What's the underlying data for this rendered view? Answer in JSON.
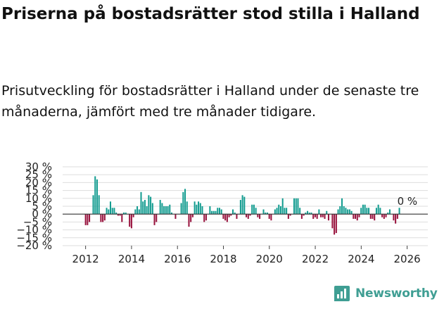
{
  "title": "Priserna på bostadsrätter stod stilla i Halland",
  "subtitle": "Prisutveckling för bostadsrätter i Halland under de senaste tre månaderna, jämfört med tre månader tidigare.",
  "brand": {
    "name": "Newsworthy",
    "color": "#3f9e93",
    "icon": "bar-chart-icon"
  },
  "colors": {
    "positive": "#139c90",
    "negative": "#98123d",
    "grid": "#dddddd",
    "zero": "#333333"
  },
  "chart_data": {
    "type": "bar",
    "title": "Priserna på bostadsrätter stod stilla i Halland",
    "xlabel": "",
    "ylabel": "",
    "ylim": [
      -20,
      30
    ],
    "xlim": [
      2011.0,
      2026.9
    ],
    "grid": true,
    "y_ticks": [
      -20,
      -15,
      -10,
      -5,
      0,
      5,
      10,
      15,
      20,
      25,
      30
    ],
    "y_tick_labels": [
      "−20 %",
      "−15 %",
      "−10 %",
      "−5 %",
      "0 %",
      "5 %",
      "10 %",
      "15 %",
      "20 %",
      "25 %",
      "30 %"
    ],
    "x_ticks": [
      2012,
      2014,
      2016,
      2018,
      2020,
      2022,
      2024,
      2026
    ],
    "x_tick_labels": [
      "2012",
      "2014",
      "2016",
      "2018",
      "2020",
      "2022",
      "2024",
      "2026"
    ],
    "annotation": {
      "label": "0 %",
      "x": 2026.0,
      "y": 0
    },
    "series": [
      {
        "name": "Prisutveckling",
        "start": 2012.0,
        "step_years": 0.0833,
        "values": [
          -7,
          -7,
          -5,
          0,
          12,
          24,
          22,
          12,
          -5,
          -5,
          -4,
          4,
          3,
          8,
          4,
          4,
          1,
          -1,
          -1,
          -5,
          1,
          1,
          0,
          -8,
          -9,
          -2,
          3,
          5,
          3,
          14,
          8,
          9,
          5,
          12,
          11,
          7,
          -7,
          -5,
          0,
          9,
          7,
          5,
          5,
          5,
          6,
          1,
          0,
          -3,
          0,
          0,
          7,
          14,
          16,
          8,
          -8,
          -5,
          -2,
          8,
          6,
          8,
          7,
          5,
          -5,
          -4,
          0,
          5,
          2,
          2,
          2,
          4,
          4,
          3,
          -3,
          -4,
          -5,
          -2,
          -1,
          3,
          1,
          -3,
          0,
          9,
          12,
          11,
          -2,
          -3,
          -1,
          6,
          6,
          4,
          -2,
          -3,
          0,
          3,
          1,
          1,
          -3,
          -4,
          0,
          3,
          4,
          6,
          5,
          10,
          4,
          4,
          -3,
          -1,
          0,
          10,
          10,
          10,
          4,
          -3,
          -1,
          1,
          2,
          1,
          1,
          -3,
          -2,
          -3,
          3,
          -2,
          -2,
          -3,
          2,
          -4,
          0,
          -9,
          -13,
          -12,
          3,
          5,
          10,
          5,
          4,
          3,
          3,
          2,
          -3,
          -3,
          -4,
          -2,
          4,
          6,
          6,
          4,
          4,
          -3,
          -3,
          -4,
          4,
          6,
          4,
          -2,
          -3,
          -2,
          1,
          3,
          0,
          -4,
          -6,
          -3,
          4,
          0
        ]
      }
    ]
  }
}
